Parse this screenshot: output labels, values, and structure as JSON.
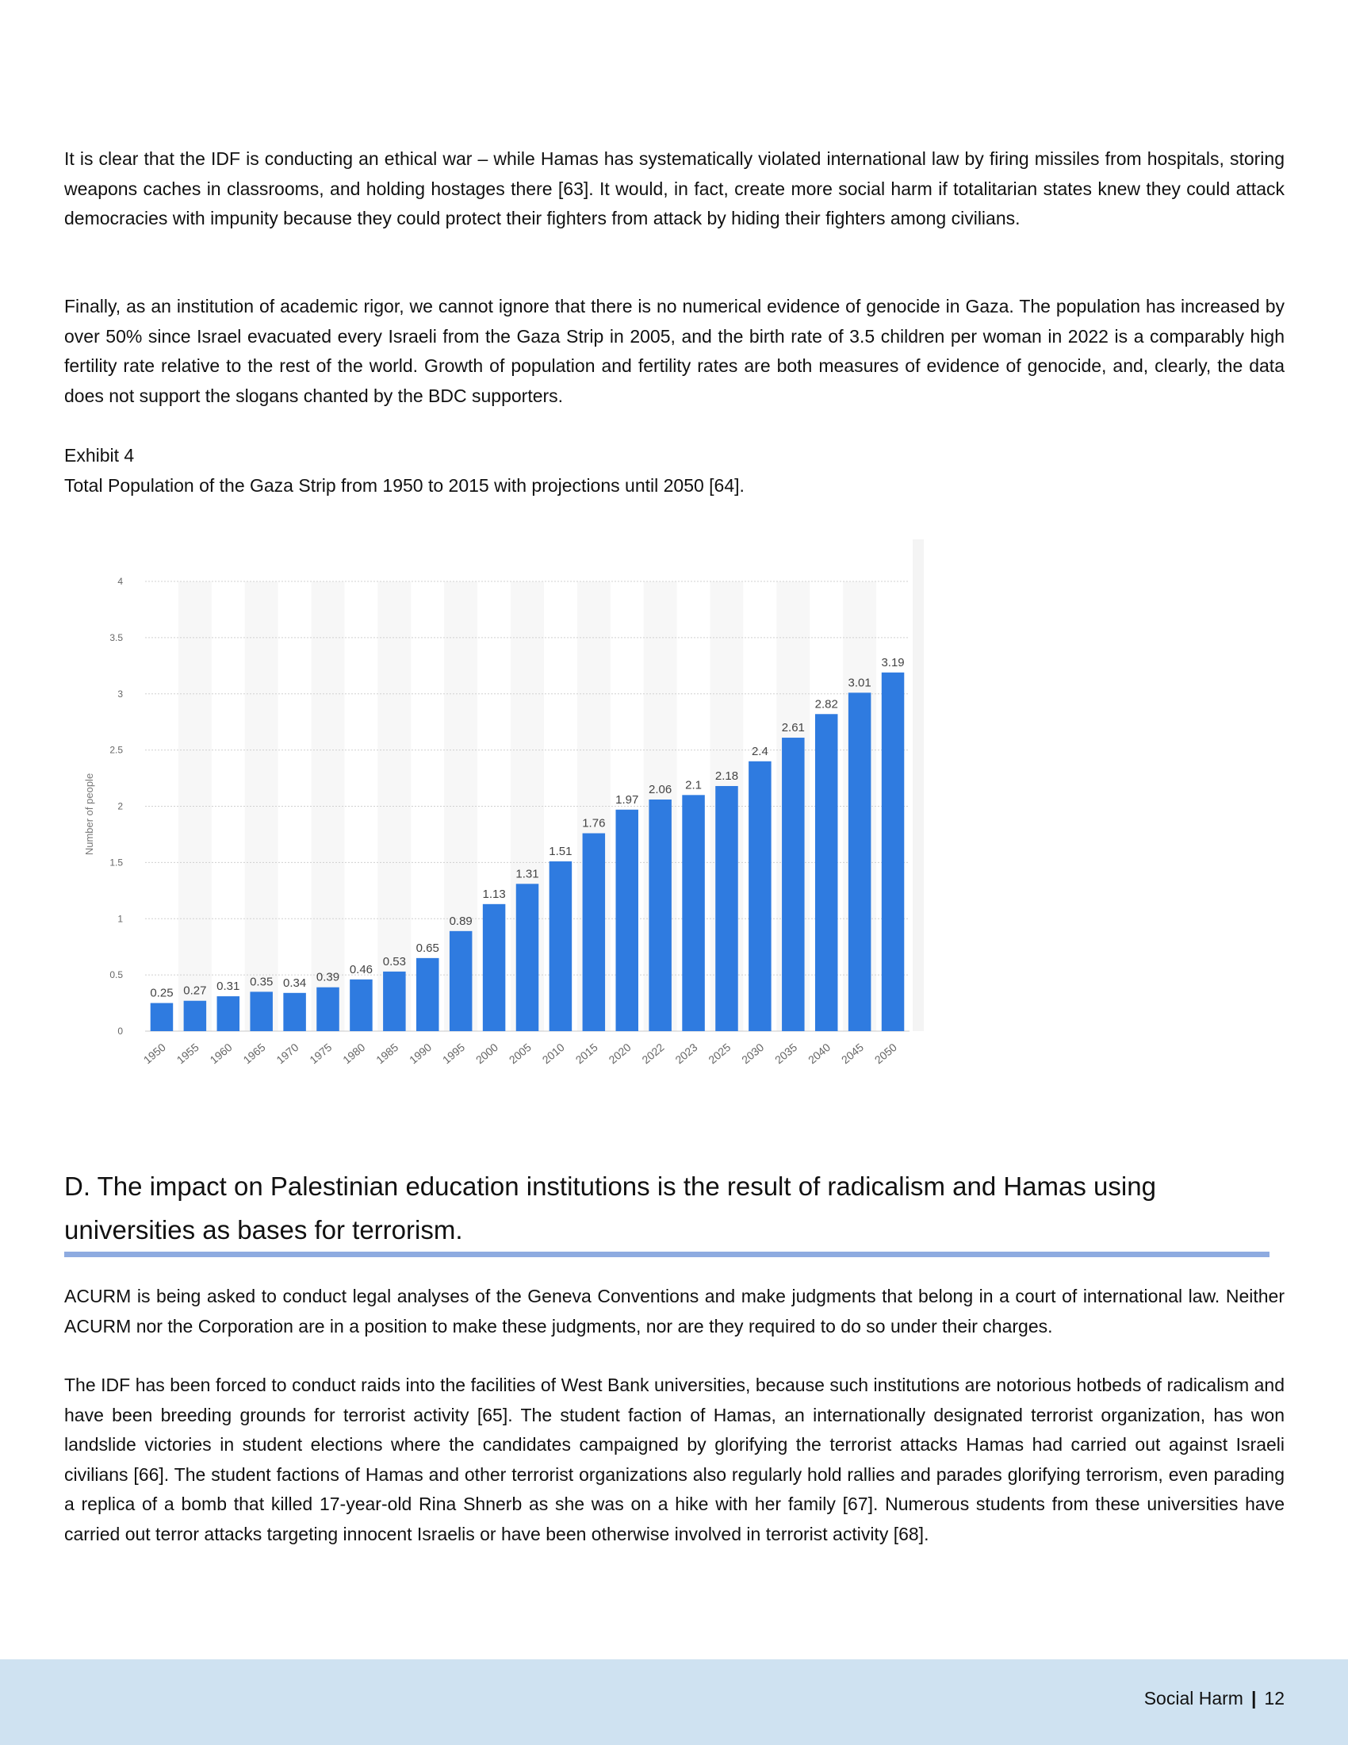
{
  "body": {
    "paragraph_1": "It is clear that the IDF is conducting an ethical war – while Hamas has systematically violated international law by firing missiles from hospitals, storing weapons caches in classrooms, and holding hostages there [63]. It would, in fact, create more social harm if totalitarian states knew they could attack democracies with impunity because they could protect their fighters from attack by hiding their fighters among civilians.",
    "paragraph_2": "Finally, as an institution of academic rigor, we cannot ignore that there is no numerical evidence of genocide in Gaza. The population has increased by over 50% since Israel evacuated every Israeli from the Gaza Strip in 2005, and the birth rate of 3.5 children per woman in 2022 is a comparably high fertility rate relative to the rest of the world. Growth of population and fertility rates are both measures of evidence of genocide, and, clearly, the data does not support the slogans chanted by the BDC supporters.",
    "exhibit_label": "Exhibit 4",
    "exhibit_caption": "Total Population of the Gaza Strip from 1950 to 2015 with projections until 2050 [64].",
    "section_heading": "D. The impact on Palestinian education institutions is the result of radicalism and Hamas using universities as bases for terrorism.",
    "paragraph_3": "ACURM is being asked to conduct legal analyses of the Geneva Conventions and make judgments that belong in a court of international law. Neither ACURM nor the Corporation are in a position to make these judgments, nor are they required to do so under their charges.",
    "paragraph_4": "The IDF has been forced to conduct raids into the facilities of West Bank universities, because such institutions are notorious hotbeds of radicalism and have been breeding grounds for terrorist activity [65]. The student faction of Hamas, an internationally designated terrorist organization, has won landslide victories in student elections where the candidates campaigned by glorifying the terrorist attacks Hamas had carried out against Israeli civilians [66]. The student factions of Hamas and other terrorist organizations also regularly hold rallies and parades glorifying terrorism, even parading a replica of a bomb that killed 17-year-old Rina Shnerb as she was on a hike with her family [67]. Numerous students from these universities have carried out terror attacks targeting innocent Israelis or have been otherwise involved in terrorist activity [68]."
  },
  "footer": {
    "section": "Social Harm",
    "separator": "|",
    "page_number": "12"
  },
  "colors": {
    "bar": "#2f7be0",
    "rule": "#8eabe0",
    "footer_bg": "#cfe2f1"
  },
  "chart_data": {
    "type": "bar",
    "ylabel": "Number of people",
    "ylim": [
      0,
      4
    ],
    "yticks": [
      0,
      0.5,
      1,
      1.5,
      2,
      2.5,
      3,
      3.5,
      4
    ],
    "ytick_labels": [
      "0",
      "0.5",
      "1",
      "1.5",
      "2",
      "2.5",
      "3",
      "3.5",
      "4"
    ],
    "grid": true,
    "categories": [
      "1950",
      "1955",
      "1960",
      "1965",
      "1970",
      "1975",
      "1980",
      "1985",
      "1990",
      "1995",
      "2000",
      "2005",
      "2010",
      "2015",
      "2020",
      "2022",
      "2023",
      "2025",
      "2030",
      "2035",
      "2040",
      "2045",
      "2050"
    ],
    "values": [
      0.25,
      0.27,
      0.31,
      0.35,
      0.34,
      0.39,
      0.46,
      0.53,
      0.65,
      0.89,
      1.13,
      1.31,
      1.51,
      1.76,
      1.97,
      2.06,
      2.1,
      2.18,
      2.4,
      2.61,
      2.82,
      3.01,
      3.19
    ],
    "value_labels": [
      "0.25",
      "0.27",
      "0.31",
      "0.35",
      "0.34",
      "0.39",
      "0.46",
      "0.53",
      "0.65",
      "0.89",
      "1.13",
      "1.31",
      "1.51",
      "1.76",
      "1.97",
      "2.06",
      "2.1",
      "2.18",
      "2.4",
      "2.61",
      "2.82",
      "3.01",
      "3.19"
    ]
  }
}
